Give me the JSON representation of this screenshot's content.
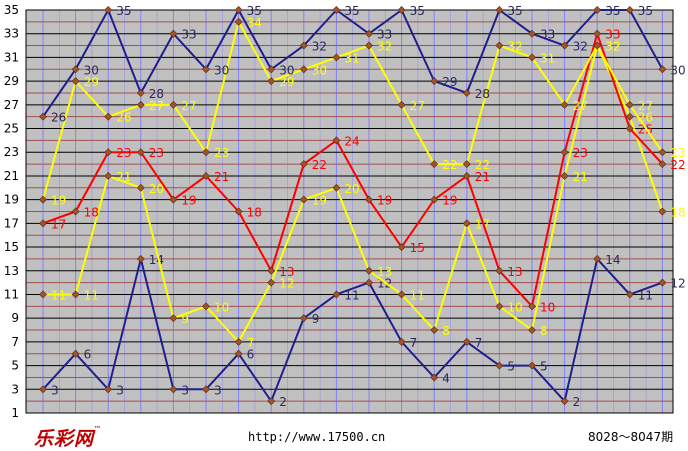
{
  "chart_data": {
    "type": "line",
    "y_ticks": [
      "1",
      "3",
      "5",
      "7",
      "9",
      "11",
      "13",
      "15",
      "17",
      "19",
      "21",
      "23",
      "25",
      "27",
      "29",
      "31",
      "33",
      "35"
    ],
    "ylim": [
      1,
      35
    ],
    "x_count": 20,
    "grid": true,
    "series": [
      {
        "color": "#1f1f8f",
        "label_color": "#2a2a5a",
        "values": [
          3,
          6,
          3,
          14,
          3,
          3,
          6,
          2,
          9,
          11,
          12,
          7,
          4,
          7,
          5,
          5,
          2,
          14,
          11,
          12
        ]
      },
      {
        "color": "#ffff00",
        "label_color": "#ffff00",
        "values": [
          11,
          11,
          21,
          20,
          9,
          10,
          7,
          12,
          19,
          20,
          13,
          11,
          8,
          17,
          10,
          8,
          21,
          32,
          26,
          18
        ]
      },
      {
        "color": "#ff0000",
        "label_color": "#ff0000",
        "values": [
          17,
          18,
          23,
          23,
          19,
          21,
          18,
          13,
          22,
          24,
          19,
          15,
          19,
          21,
          13,
          10,
          23,
          33,
          25,
          22
        ]
      },
      {
        "color": "#ffff00",
        "label_color": "#ffff00",
        "values": [
          19,
          29,
          26,
          27,
          27,
          23,
          34,
          29,
          30,
          31,
          32,
          27,
          22,
          22,
          32,
          31,
          27,
          32,
          27,
          23
        ]
      },
      {
        "color": "#1f1f8f",
        "label_color": "#2a2a5a",
        "values": [
          26,
          30,
          35,
          28,
          33,
          30,
          35,
          30,
          32,
          35,
          33,
          35,
          29,
          28,
          35,
          33,
          32,
          35,
          35,
          30
        ]
      }
    ]
  },
  "footer": {
    "logo": "乐彩网",
    "trademark": "™",
    "url": "http://www.17500.cn",
    "range": "8028～8047期"
  }
}
